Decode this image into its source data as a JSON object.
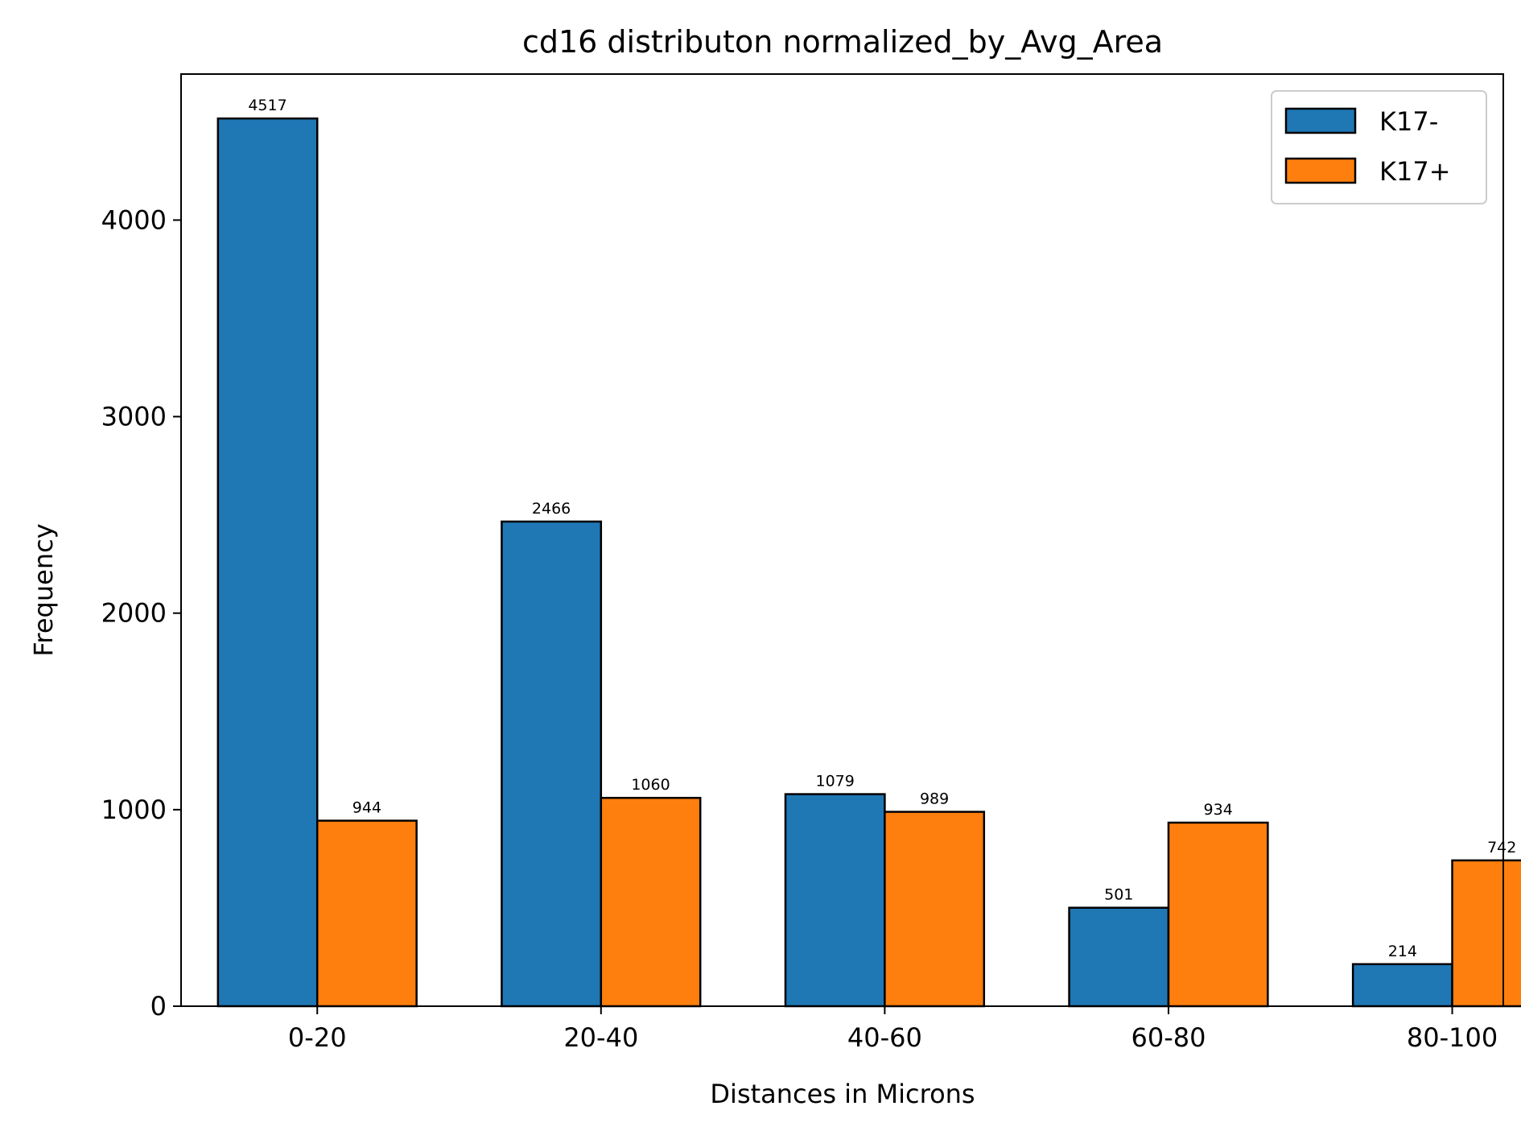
{
  "chart_data": {
    "type": "bar",
    "title": "cd16 distributon normalized_by_Avg_Area",
    "xlabel": "Distances in Microns",
    "ylabel": "Frequency",
    "categories": [
      "0-20",
      "20-40",
      "40-60",
      "60-80",
      "80-100"
    ],
    "series": [
      {
        "name": "K17-",
        "color": "#1f77b4",
        "values": [
          4517,
          2466,
          1079,
          501,
          214
        ]
      },
      {
        "name": "K17+",
        "color": "#ff7f0e",
        "values": [
          944,
          1060,
          989,
          934,
          742
        ]
      }
    ],
    "ylim": [
      0,
      4743
    ],
    "yticks": [
      0,
      1000,
      2000,
      3000,
      4000
    ],
    "grid": false,
    "legend_position": "top-right",
    "bar_edge_color": "#000000"
  }
}
